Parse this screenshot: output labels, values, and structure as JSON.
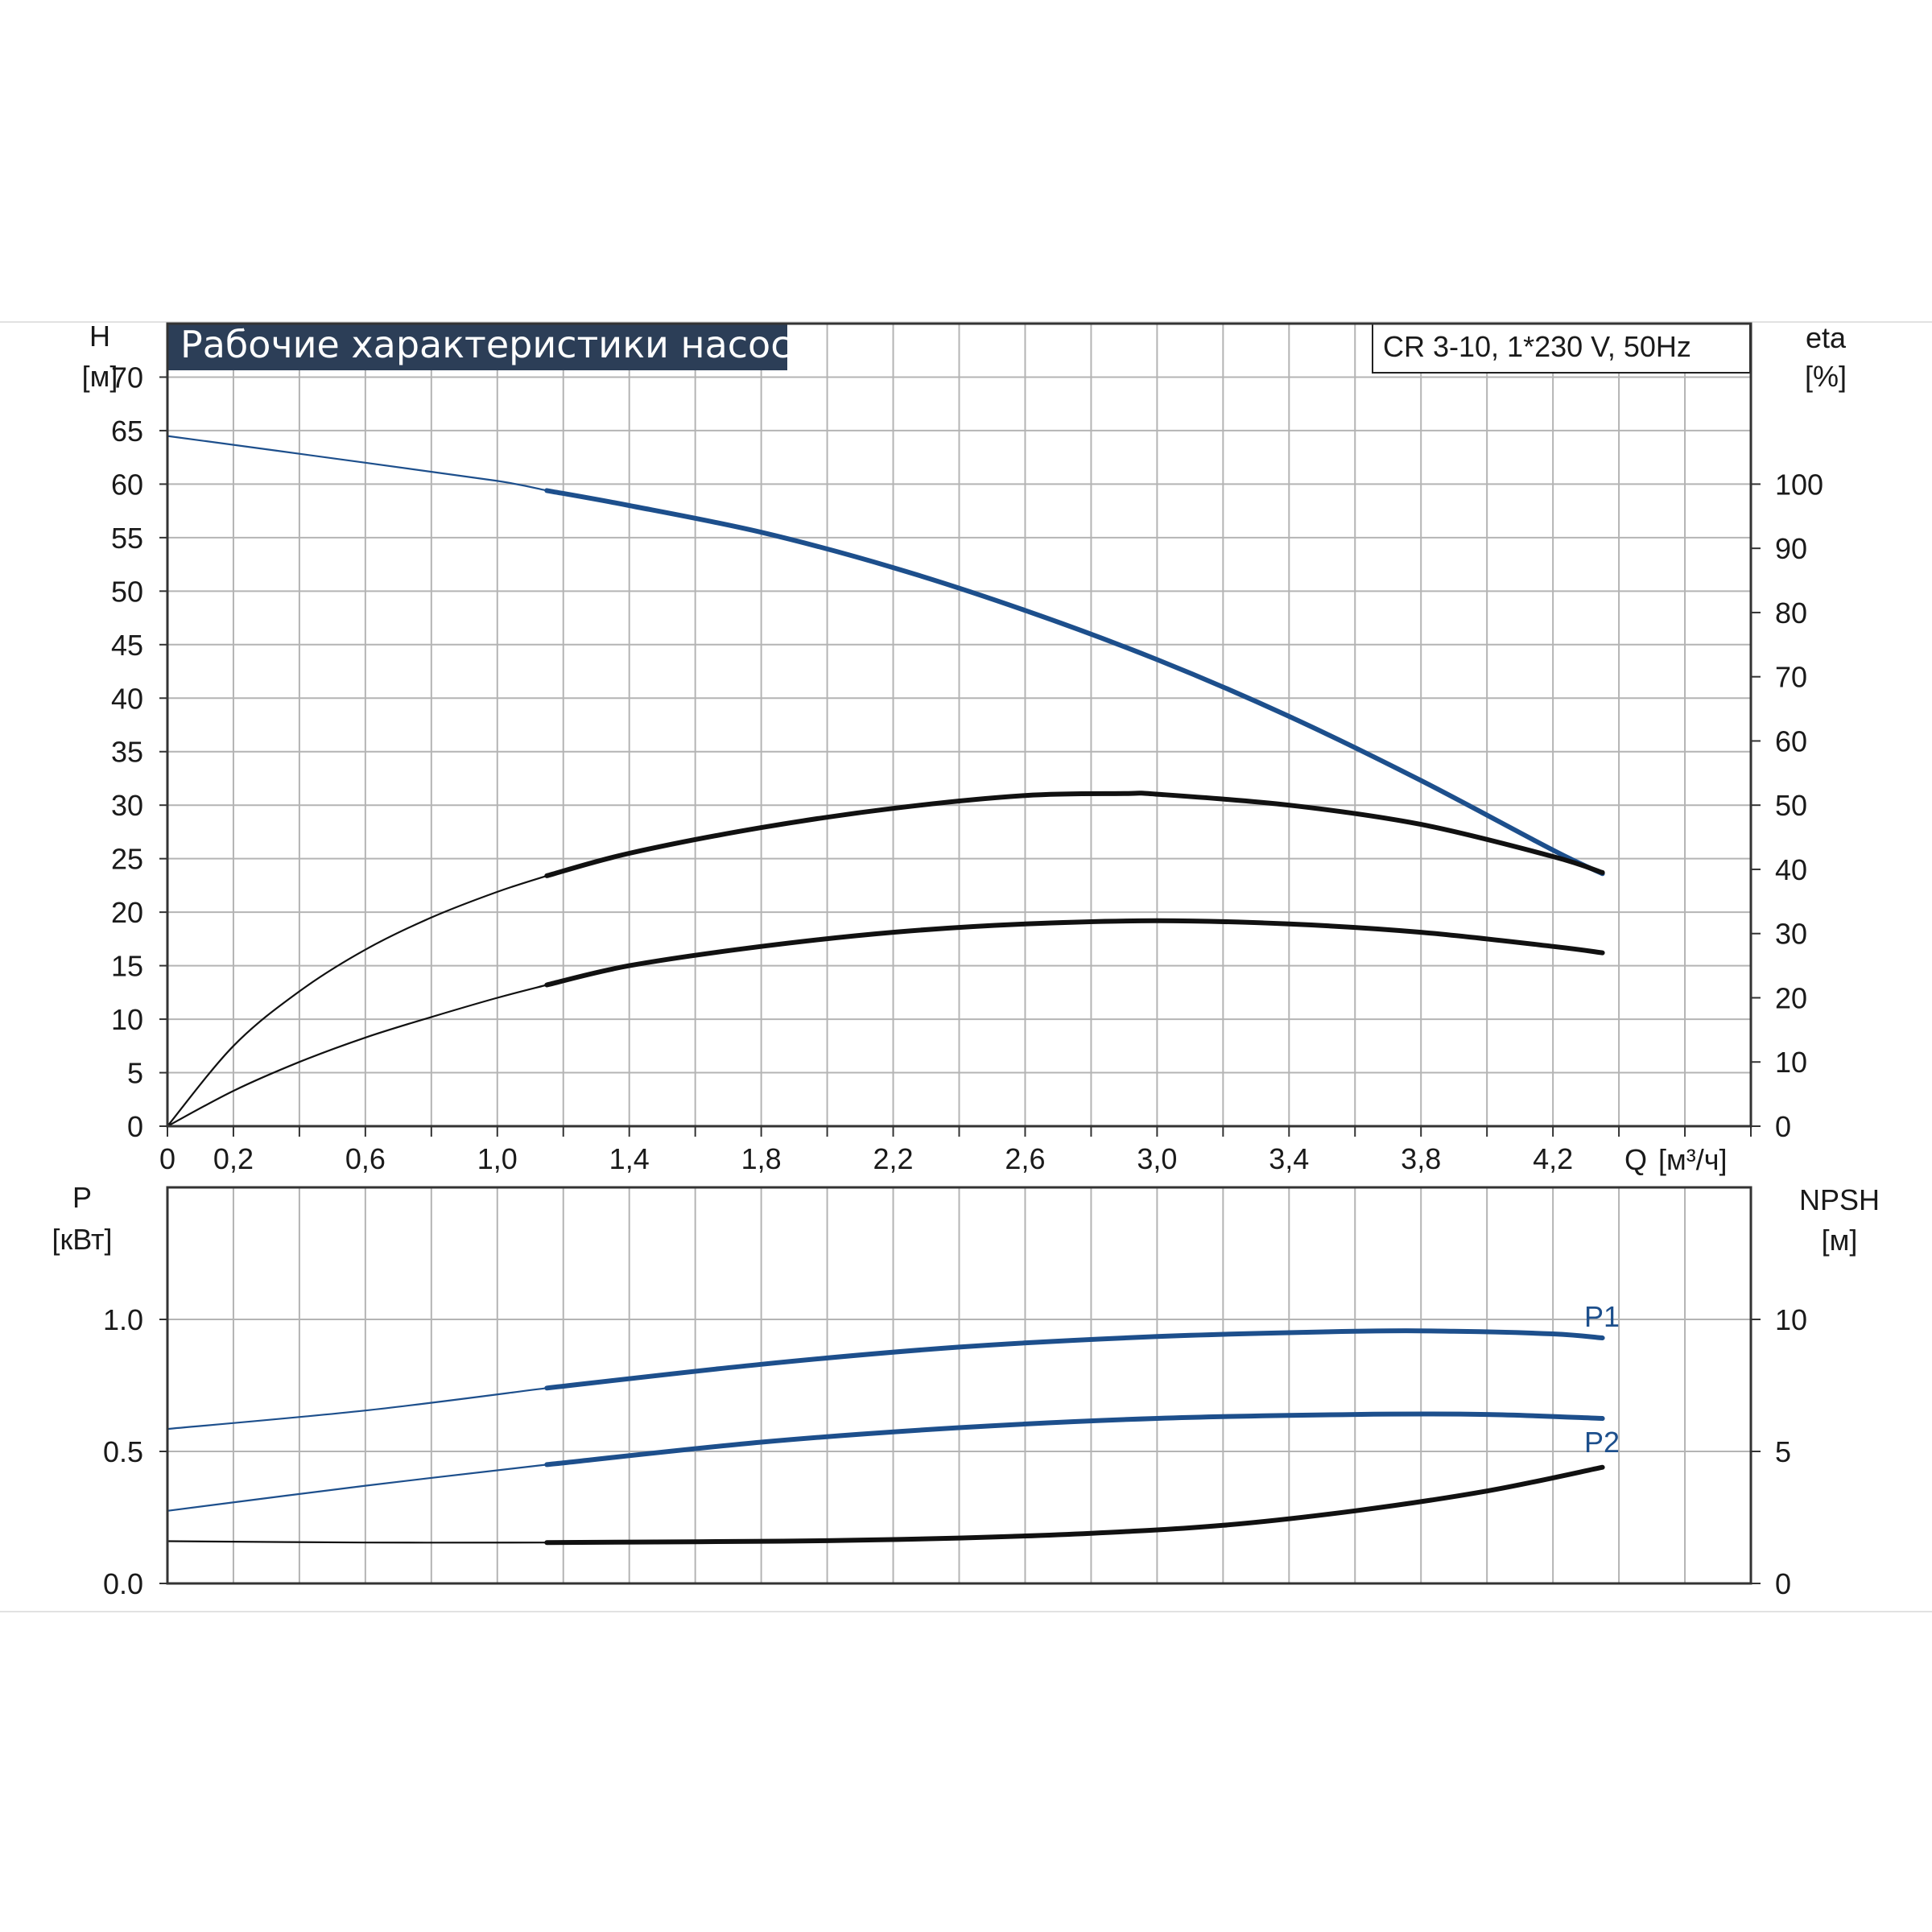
{
  "title": "Рабочие характеристики насоса",
  "model": "CR 3-10, 1*230 V, 50Hz",
  "colors": {
    "blue": "#1d4f8c",
    "black": "#111111",
    "title_bg": "#2c3e57",
    "grid": "#b4b4b4",
    "sep": "#e2e2e2"
  },
  "top_left_axis": {
    "name": "H",
    "unit": "[м]"
  },
  "top_right_axis": {
    "name": "eta",
    "unit": "[%]"
  },
  "bottom_left_axis": {
    "name": "P",
    "unit": "[кВт]"
  },
  "bottom_right_axis": {
    "name": "NPSH",
    "unit": "[м]"
  },
  "x_axis": {
    "name": "Q",
    "unit": "[м³/ч]"
  },
  "chart_data": [
    {
      "type": "line",
      "xlim": [
        0,
        4.8
      ],
      "ylim": [
        0,
        75
      ],
      "y2lim": [
        0,
        125
      ],
      "xticks": [
        "0",
        "0,2",
        "0,6",
        "1,0",
        "1,4",
        "1,8",
        "2,2",
        "2,6",
        "3,0",
        "3,4",
        "3,8",
        "4,2"
      ],
      "yticks": [
        "0",
        "5",
        "10",
        "15",
        "20",
        "25",
        "30",
        "35",
        "40",
        "45",
        "50",
        "55",
        "60",
        "65",
        "70"
      ],
      "y2ticks": [
        "0",
        "10",
        "20",
        "30",
        "40",
        "50",
        "60",
        "70",
        "80",
        "90",
        "100"
      ],
      "grid": true,
      "series": [
        {
          "axis": "left",
          "color": "blue",
          "op_from": 1.15,
          "x": [
            0,
            0.6,
            1.0,
            1.15,
            1.4,
            1.8,
            2.2,
            2.6,
            3.0,
            3.4,
            3.8,
            4.2,
            4.35
          ],
          "y": [
            64.5,
            62.0,
            60.3,
            59.4,
            58.0,
            55.5,
            52.2,
            48.2,
            43.6,
            38.3,
            32.3,
            25.8,
            23.6
          ]
        },
        {
          "axis": "right",
          "color": "black",
          "op_from": 1.15,
          "x": [
            0,
            0.2,
            0.4,
            0.6,
            0.8,
            1.0,
            1.15,
            1.4,
            1.8,
            2.2,
            2.6,
            2.9,
            3.0,
            3.4,
            3.8,
            4.2,
            4.35
          ],
          "y": [
            0,
            12.5,
            21.0,
            27.5,
            32.5,
            36.5,
            39.0,
            42.5,
            46.5,
            49.5,
            51.5,
            51.8,
            51.7,
            50.0,
            47.0,
            42.0,
            39.5
          ]
        },
        {
          "axis": "right",
          "color": "black",
          "op_from": 1.15,
          "x": [
            0,
            0.2,
            0.4,
            0.6,
            0.8,
            1.0,
            1.15,
            1.4,
            1.8,
            2.2,
            2.6,
            3.0,
            3.4,
            3.8,
            4.2,
            4.35
          ],
          "y": [
            0,
            5.5,
            10.0,
            13.8,
            17.0,
            20.0,
            22.0,
            25.0,
            28.0,
            30.2,
            31.5,
            32.0,
            31.5,
            30.2,
            28.0,
            27.0
          ]
        }
      ]
    },
    {
      "type": "line",
      "xlim": [
        0,
        4.8
      ],
      "ylim": [
        0,
        1.5
      ],
      "y2lim": [
        0,
        15
      ],
      "yticks": [
        "0.0",
        "0.5",
        "1.0"
      ],
      "y2ticks": [
        "0",
        "5",
        "10"
      ],
      "grid": true,
      "series": [
        {
          "name": "P1",
          "axis": "left",
          "color": "blue",
          "op_from": 1.15,
          "x": [
            0,
            0.6,
            1.15,
            1.8,
            2.4,
            3.0,
            3.6,
            3.9,
            4.2,
            4.35
          ],
          "y": [
            0.585,
            0.655,
            0.74,
            0.83,
            0.895,
            0.935,
            0.955,
            0.955,
            0.945,
            0.93
          ]
        },
        {
          "name": "P2",
          "axis": "left",
          "color": "blue",
          "op_from": 1.15,
          "x": [
            0,
            0.6,
            1.15,
            1.8,
            2.4,
            3.0,
            3.6,
            4.0,
            4.35
          ],
          "y": [
            0.275,
            0.37,
            0.45,
            0.535,
            0.59,
            0.625,
            0.64,
            0.64,
            0.625
          ]
        },
        {
          "name": "NPSH",
          "axis": "right",
          "color": "black",
          "op_from": 1.15,
          "x": [
            0,
            0.6,
            1.15,
            1.6,
            2.0,
            2.4,
            2.8,
            3.2,
            3.6,
            4.0,
            4.35
          ],
          "y": [
            1.6,
            1.55,
            1.55,
            1.58,
            1.62,
            1.72,
            1.9,
            2.2,
            2.75,
            3.5,
            4.4
          ]
        }
      ]
    }
  ]
}
